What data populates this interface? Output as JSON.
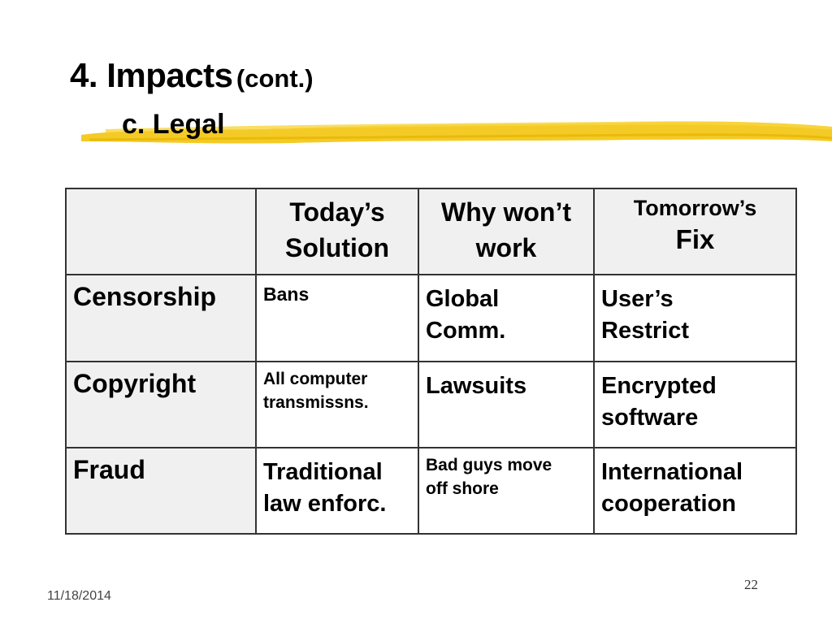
{
  "slide": {
    "title_main": "4. Impacts",
    "title_cont": "(cont.)",
    "subtitle": "c. Legal",
    "accent_color": "#f2c200"
  },
  "table": {
    "header": {
      "corner": "",
      "col1_line1": "Today’s",
      "col1_line2": "Solution",
      "col2_line1": "Why won’t",
      "col2_line2": "work",
      "col3_line1": "Tomorrow’s",
      "col3_line2": "Fix"
    },
    "rows": [
      {
        "label": "Censorship",
        "c1_line1": "Bans",
        "c1_line2": "",
        "c2_line1": "Global",
        "c2_line2": "Comm.",
        "c3_line1": "User’s",
        "c3_line2": "Restrict"
      },
      {
        "label": "Copyright",
        "c1_line1": "All computer",
        "c1_line2": "transmissns.",
        "c2_line1": "Lawsuits",
        "c2_line2": "",
        "c3_line1": "Encrypted",
        "c3_line2": "software"
      },
      {
        "label": "Fraud",
        "c1_line1": "Traditional",
        "c1_line2": "law enforc.",
        "c2_line1": "Bad guys move",
        "c2_line2": "off shore",
        "c3_line1": "International",
        "c3_line2": "cooperation"
      }
    ]
  },
  "footer": {
    "page_number": "22",
    "date": "11/18/2014"
  }
}
